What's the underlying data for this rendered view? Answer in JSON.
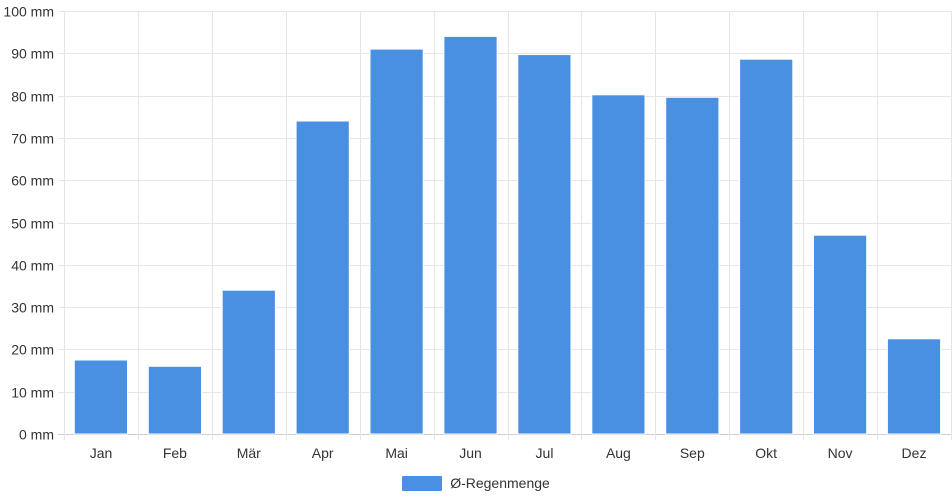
{
  "chart_data": {
    "type": "bar",
    "categories": [
      "Jan",
      "Feb",
      "Mär",
      "Apr",
      "Mai",
      "Jun",
      "Jul",
      "Aug",
      "Sep",
      "Okt",
      "Nov",
      "Dez"
    ],
    "series": [
      {
        "name": "Ø-Regenmenge",
        "values": [
          17.5,
          16,
          34,
          74,
          91,
          94,
          89.7,
          80.2,
          79.6,
          88.6,
          47,
          22.5
        ],
        "color": "#4a90e2"
      }
    ],
    "ylim": [
      0,
      100
    ],
    "yticks": [
      0,
      10,
      20,
      30,
      40,
      50,
      60,
      70,
      80,
      90,
      100
    ],
    "y_unit": "mm",
    "grid": true,
    "legend_position": "bottom-center"
  }
}
